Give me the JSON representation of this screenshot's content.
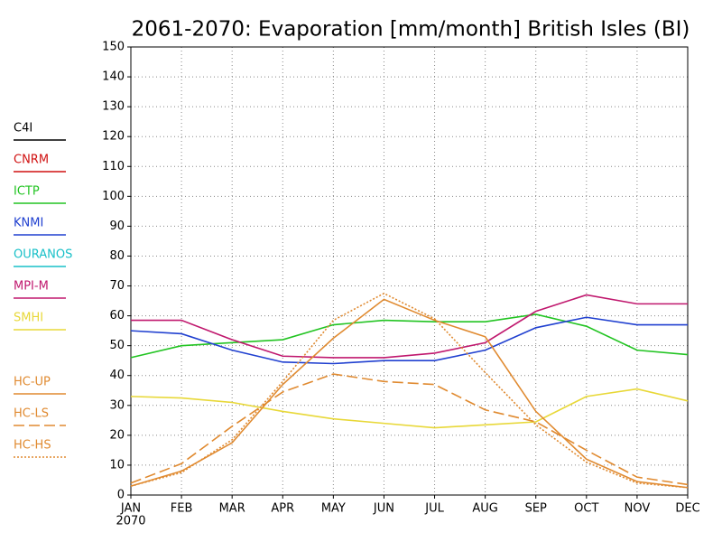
{
  "chart_data": {
    "type": "line",
    "title": "2061-2070: Evaporation [mm/month] British Isles (BI)",
    "categories": [
      "JAN",
      "FEB",
      "MAR",
      "APR",
      "MAY",
      "JUN",
      "JUL",
      "AUG",
      "SEP",
      "OCT",
      "NOV",
      "DEC"
    ],
    "year_label": "2070",
    "ylim": [
      0,
      150
    ],
    "yticks": [
      0,
      10,
      20,
      30,
      40,
      50,
      60,
      70,
      80,
      90,
      100,
      110,
      120,
      130,
      140,
      150
    ],
    "grid": true,
    "legend": "left",
    "series": [
      {
        "name": "C4I",
        "color": "#000000",
        "dash": "solid",
        "values": [
          null,
          null,
          null,
          null,
          null,
          null,
          null,
          null,
          null,
          null,
          null,
          null
        ]
      },
      {
        "name": "CNRM",
        "color": "#d01010",
        "dash": "solid",
        "values": [
          null,
          null,
          null,
          null,
          null,
          null,
          null,
          null,
          null,
          null,
          null,
          null
        ]
      },
      {
        "name": "ICTP",
        "color": "#22c422",
        "dash": "solid",
        "values": [
          46,
          50,
          51,
          52,
          57,
          58.5,
          58,
          58,
          60.5,
          56.5,
          48.5,
          47
        ]
      },
      {
        "name": "KNMI",
        "color": "#2040d0",
        "dash": "solid",
        "values": [
          55,
          54,
          48.5,
          44.5,
          44,
          45,
          45,
          48.5,
          56,
          59.5,
          57,
          57
        ]
      },
      {
        "name": "OURANOS",
        "color": "#18c0c8",
        "dash": "solid",
        "values": [
          null,
          null,
          null,
          null,
          null,
          null,
          null,
          null,
          null,
          null,
          null,
          null
        ]
      },
      {
        "name": "MPI-M",
        "color": "#c0186e",
        "dash": "solid",
        "values": [
          58.5,
          58.5,
          52,
          46.5,
          46,
          46,
          47.5,
          51,
          61.5,
          67,
          64,
          64
        ]
      },
      {
        "name": "SMHI",
        "color": "#e8d838",
        "dash": "solid",
        "values": [
          33,
          32.5,
          31,
          28,
          25.5,
          24,
          22.5,
          23.5,
          24.5,
          33,
          35.5,
          31.5
        ]
      },
      {
        "name": "HC-UP",
        "color": "#e08a30",
        "dash": "solid",
        "values": [
          3,
          8,
          17.5,
          37,
          52.5,
          65.5,
          58.5,
          53,
          28,
          12,
          4.5,
          2.5
        ]
      },
      {
        "name": "HC-LS",
        "color": "#e08a30",
        "dash": "dashed",
        "values": [
          4,
          10.5,
          23,
          34.5,
          40.5,
          38,
          37,
          28.5,
          24.5,
          15,
          6,
          3.5
        ]
      },
      {
        "name": "HC-HS",
        "color": "#e08a30",
        "dash": "dotted",
        "values": [
          3,
          7.5,
          18.5,
          38,
          58.5,
          67.5,
          59,
          41,
          23.5,
          11,
          4,
          2.5
        ]
      }
    ]
  }
}
